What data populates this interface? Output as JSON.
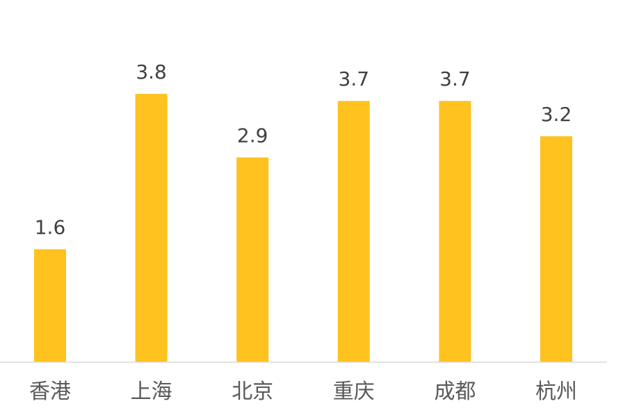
{
  "chart_data": {
    "type": "bar",
    "title": "",
    "xlabel": "",
    "ylabel": "",
    "categories": [
      "香港",
      "上海",
      "北京",
      "重庆",
      "成都",
      "杭州"
    ],
    "values": [
      1.6,
      3.8,
      2.9,
      3.7,
      3.7,
      3.2
    ],
    "data_labels": [
      "1.6",
      "3.8",
      "2.9",
      "3.7",
      "3.7",
      "3.2"
    ],
    "ylim": [
      0,
      5.13
    ],
    "grid": false,
    "legend": "none",
    "colors": {
      "bar": "#FFC21E",
      "axis": "#D9D9D9",
      "label": "#404040",
      "category": "#595959"
    }
  }
}
